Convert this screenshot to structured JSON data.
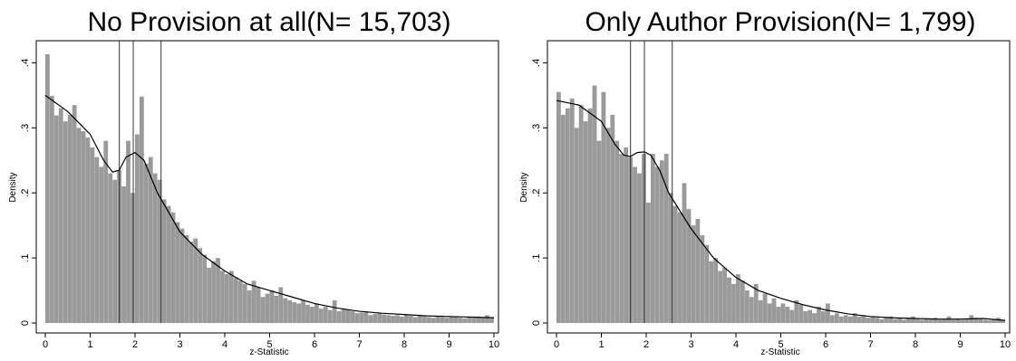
{
  "chart_data": [
    {
      "type": "bar",
      "title": "No Provision at all(N=  15,703)",
      "xlabel": "z-Statistic",
      "ylabel": "Density",
      "xlim": [
        0,
        10
      ],
      "ylim": [
        0,
        0.42
      ],
      "xticks": [
        "0",
        "1",
        "2",
        "3",
        "4",
        "5",
        "6",
        "7",
        "8",
        "9",
        "10"
      ],
      "yticks": [
        "0",
        ".1",
        ".2",
        ".3",
        ".4"
      ],
      "bin_width": 0.1,
      "reference_lines_x": [
        1.65,
        1.96,
        2.58
      ],
      "bar_color": "#9a9a9a",
      "curve_color": "#000000",
      "density": [
        0.413,
        0.349,
        0.319,
        0.33,
        0.31,
        0.32,
        0.335,
        0.3,
        0.295,
        0.285,
        0.27,
        0.255,
        0.24,
        0.28,
        0.23,
        0.22,
        0.235,
        0.21,
        0.28,
        0.2,
        0.29,
        0.348,
        0.245,
        0.255,
        0.23,
        0.22,
        0.19,
        0.18,
        0.17,
        0.155,
        0.145,
        0.135,
        0.125,
        0.13,
        0.115,
        0.105,
        0.085,
        0.095,
        0.1,
        0.08,
        0.075,
        0.08,
        0.07,
        0.065,
        0.06,
        0.05,
        0.065,
        0.055,
        0.04,
        0.045,
        0.05,
        0.042,
        0.055,
        0.038,
        0.035,
        0.032,
        0.03,
        0.035,
        0.028,
        0.025,
        0.03,
        0.022,
        0.025,
        0.02,
        0.035,
        0.018,
        0.022,
        0.02,
        0.018,
        0.015,
        0.016,
        0.018,
        0.012,
        0.014,
        0.015,
        0.013,
        0.012,
        0.011,
        0.012,
        0.01,
        0.013,
        0.011,
        0.009,
        0.012,
        0.01,
        0.009,
        0.008,
        0.01,
        0.009,
        0.008,
        0.01,
        0.009,
        0.008,
        0.007,
        0.009,
        0.008,
        0.01,
        0.008,
        0.012,
        0.009
      ],
      "smooth_x": [
        0,
        0.5,
        1,
        1.3,
        1.5,
        1.65,
        1.8,
        2,
        2.2,
        2.5,
        3,
        3.5,
        4,
        4.5,
        5,
        5.5,
        6,
        6.5,
        7,
        7.5,
        8,
        8.5,
        9,
        9.5,
        10
      ],
      "smooth_y": [
        0.35,
        0.325,
        0.29,
        0.25,
        0.232,
        0.235,
        0.255,
        0.262,
        0.25,
        0.2,
        0.14,
        0.105,
        0.08,
        0.06,
        0.05,
        0.04,
        0.03,
        0.023,
        0.018,
        0.015,
        0.013,
        0.011,
        0.01,
        0.009,
        0.008
      ]
    },
    {
      "type": "bar",
      "title": "Only Author Provision(N=   1,799)",
      "xlabel": "z-Statistic",
      "ylabel": "Density",
      "xlim": [
        0,
        10
      ],
      "ylim": [
        0,
        0.42
      ],
      "xticks": [
        "0",
        "1",
        "2",
        "3",
        "4",
        "5",
        "6",
        "7",
        "8",
        "9",
        "10"
      ],
      "yticks": [
        "0",
        ".1",
        ".2",
        ".3",
        ".4"
      ],
      "bin_width": 0.1,
      "reference_lines_x": [
        1.65,
        1.96,
        2.58
      ],
      "bar_color": "#9a9a9a",
      "curve_color": "#000000",
      "density": [
        0.355,
        0.32,
        0.33,
        0.345,
        0.3,
        0.335,
        0.31,
        0.33,
        0.365,
        0.28,
        0.355,
        0.3,
        0.32,
        0.28,
        0.26,
        0.27,
        0.255,
        0.24,
        0.23,
        0.26,
        0.185,
        0.26,
        0.24,
        0.25,
        0.26,
        0.2,
        0.18,
        0.17,
        0.215,
        0.175,
        0.15,
        0.16,
        0.135,
        0.12,
        0.095,
        0.1,
        0.08,
        0.085,
        0.07,
        0.06,
        0.075,
        0.065,
        0.05,
        0.04,
        0.06,
        0.035,
        0.045,
        0.03,
        0.038,
        0.025,
        0.03,
        0.025,
        0.02,
        0.035,
        0.028,
        0.018,
        0.02,
        0.015,
        0.025,
        0.018,
        0.03,
        0.012,
        0.015,
        0.01,
        0.012,
        0.01,
        0.015,
        0.01,
        0.012,
        0.008,
        0.01,
        0.008,
        0.006,
        0.008,
        0.01,
        0.006,
        0.008,
        0.005,
        0.008,
        0.01,
        0.006,
        0.005,
        0.007,
        0.006,
        0.008,
        0.005,
        0.006,
        0.01,
        0.005,
        0.007,
        0.005,
        0.006,
        0.012,
        0.008,
        0.006,
        0.005,
        0.004,
        0.006,
        0.008,
        0.005
      ],
      "smooth_x": [
        0,
        0.5,
        1,
        1.3,
        1.5,
        1.65,
        1.8,
        1.96,
        2.1,
        2.3,
        2.5,
        3,
        3.5,
        4,
        4.5,
        5,
        5.5,
        6,
        6.5,
        7,
        7.5,
        8,
        8.5,
        9,
        9.5,
        10
      ],
      "smooth_y": [
        0.342,
        0.335,
        0.31,
        0.275,
        0.258,
        0.256,
        0.262,
        0.263,
        0.258,
        0.235,
        0.2,
        0.145,
        0.1,
        0.07,
        0.05,
        0.038,
        0.028,
        0.02,
        0.014,
        0.01,
        0.008,
        0.007,
        0.006,
        0.006,
        0.007,
        0.004
      ]
    }
  ]
}
